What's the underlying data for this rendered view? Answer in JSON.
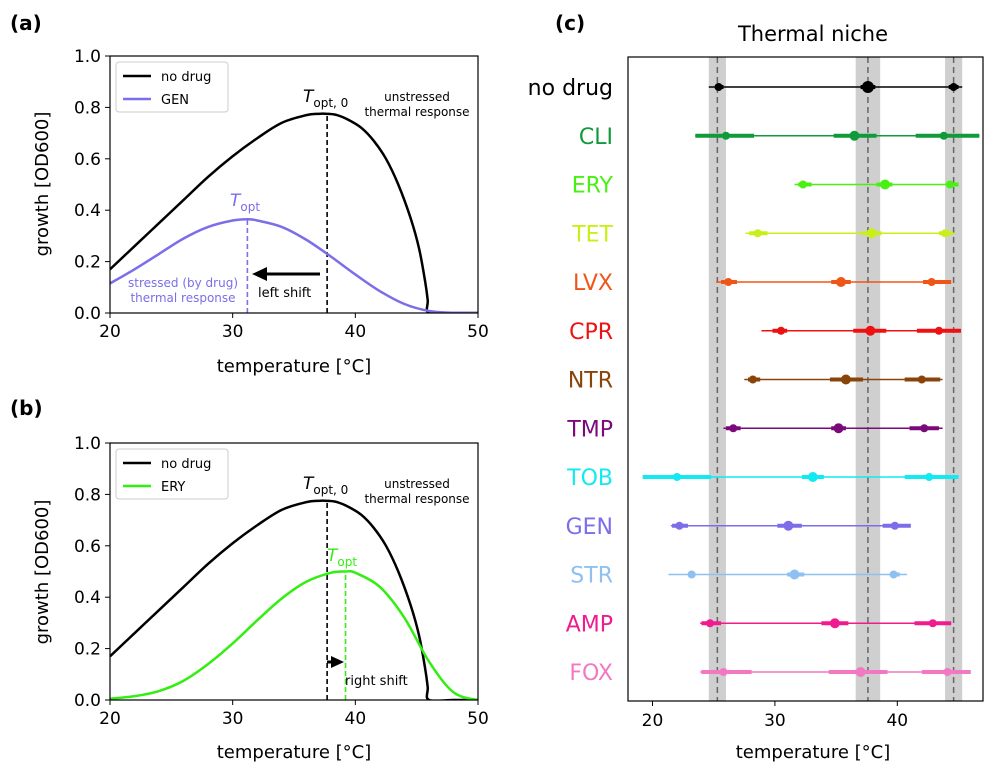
{
  "chart_data": [
    {
      "type": "line",
      "panel": "(a)",
      "xlabel": "temperature [°C]",
      "ylabel": "growth [OD600]",
      "xlim": [
        20,
        50
      ],
      "ylim": [
        0,
        1.0
      ],
      "xticks": [
        "20",
        "30",
        "40",
        "50"
      ],
      "yticks": [
        "0.0",
        "0.2",
        "0.4",
        "0.6",
        "0.8",
        "1.0"
      ],
      "legend_position": "top-left",
      "series": [
        {
          "name": "no drug",
          "color": "#000000",
          "x": [
            20,
            22,
            24,
            26,
            28,
            30,
            32,
            34,
            36,
            37,
            37.7,
            38.5,
            39.5,
            40.5,
            41.5,
            42.5,
            43.5,
            44.5,
            45.2,
            45.7,
            45.9,
            46,
            48,
            50
          ],
          "y": [
            0.17,
            0.26,
            0.35,
            0.44,
            0.53,
            0.61,
            0.68,
            0.74,
            0.77,
            0.775,
            0.775,
            0.77,
            0.75,
            0.72,
            0.67,
            0.6,
            0.5,
            0.37,
            0.25,
            0.12,
            0.05,
            0.0,
            0.0,
            0.0
          ]
        },
        {
          "name": "GEN",
          "color": "#7b6ee8",
          "x": [
            20,
            22,
            24,
            26,
            28,
            30,
            31.2,
            32,
            34,
            36,
            38,
            40,
            42,
            44,
            46,
            48,
            50
          ],
          "y": [
            0.115,
            0.17,
            0.23,
            0.29,
            0.335,
            0.36,
            0.365,
            0.36,
            0.335,
            0.285,
            0.22,
            0.15,
            0.085,
            0.035,
            0.008,
            0.001,
            0.0
          ]
        }
      ],
      "annotations": {
        "topt0": "T",
        "topt0_sub": "opt, 0",
        "topt0_x": 37.7,
        "unstressed_line1": "unstressed",
        "unstressed_line2": "thermal response",
        "topt": "T",
        "topt_sub": "opt",
        "topt_x": 31.2,
        "stressed_line1": "stressed (by drug)",
        "stressed_line2": "thermal response",
        "shift_label": "left shift"
      }
    },
    {
      "type": "line",
      "panel": "(b)",
      "xlabel": "temperature [°C]",
      "ylabel": "growth [OD600]",
      "xlim": [
        20,
        50
      ],
      "ylim": [
        0,
        1.0
      ],
      "xticks": [
        "20",
        "30",
        "40",
        "50"
      ],
      "yticks": [
        "0.0",
        "0.2",
        "0.4",
        "0.6",
        "0.8",
        "1.0"
      ],
      "legend_position": "top-left",
      "series": [
        {
          "name": "no drug",
          "color": "#000000",
          "x": [
            20,
            22,
            24,
            26,
            28,
            30,
            32,
            34,
            36,
            37,
            37.7,
            38.5,
            39.5,
            40.5,
            41.5,
            42.5,
            43.5,
            44.5,
            45.2,
            45.7,
            45.9,
            46,
            48,
            50
          ],
          "y": [
            0.17,
            0.26,
            0.35,
            0.44,
            0.53,
            0.61,
            0.68,
            0.74,
            0.77,
            0.775,
            0.775,
            0.77,
            0.75,
            0.72,
            0.67,
            0.6,
            0.5,
            0.37,
            0.25,
            0.12,
            0.05,
            0.0,
            0.0,
            0.0
          ]
        },
        {
          "name": "ERY",
          "color": "#33ee11",
          "x": [
            20,
            22,
            24,
            26,
            28,
            30,
            32,
            34,
            36,
            38,
            39.2,
            40,
            42,
            44,
            46,
            48,
            50
          ],
          "y": [
            0.005,
            0.015,
            0.035,
            0.075,
            0.14,
            0.22,
            0.31,
            0.395,
            0.46,
            0.495,
            0.5,
            0.495,
            0.44,
            0.32,
            0.15,
            0.03,
            0.0
          ]
        }
      ],
      "annotations": {
        "topt0": "T",
        "topt0_sub": "opt, 0",
        "topt0_x": 37.7,
        "unstressed_line1": "unstressed",
        "unstressed_line2": "thermal response",
        "topt": "T",
        "topt_sub": "opt",
        "topt_x": 39.2,
        "shift_label": "right shift"
      }
    },
    {
      "type": "scatter",
      "panel": "(c)",
      "title": "Thermal niche",
      "xlabel": "temperature [°C]",
      "xlim": [
        18,
        47
      ],
      "xticks": [
        20,
        30,
        40
      ],
      "reference_lines": [
        25.3,
        37.6,
        44.6
      ],
      "reference_bands": [
        [
          24.6,
          26.0
        ],
        [
          36.6,
          38.6
        ],
        [
          43.9,
          45.3
        ]
      ],
      "series": [
        {
          "name": "no drug",
          "color": "#000000",
          "min": 24.6,
          "max": 45.3,
          "points": [
            {
              "x": 25.4,
              "thick": [
                25.1,
                25.8
              ],
              "size": 4
            },
            {
              "x": 37.6,
              "thick": [
                37.0,
                38.2
              ],
              "size": 6
            },
            {
              "x": 44.6,
              "thick": [
                44.2,
                45.0
              ],
              "size": 4
            }
          ]
        },
        {
          "name": "CLI",
          "color": "#109a39",
          "min": 23.5,
          "max": 46.7,
          "points": [
            {
              "x": 26.0,
              "thick": [
                23.5,
                28.3
              ],
              "size": 4
            },
            {
              "x": 36.5,
              "thick": [
                34.8,
                38.3
              ],
              "size": 5
            },
            {
              "x": 43.8,
              "thick": [
                41.5,
                46.7
              ],
              "size": 4
            }
          ]
        },
        {
          "name": "ERY",
          "color": "#4af012",
          "min": 31.6,
          "max": 45.0,
          "points": [
            {
              "x": 32.3,
              "thick": [
                31.9,
                33.0
              ],
              "size": 4
            },
            {
              "x": 39.0,
              "thick": [
                38.3,
                39.6
              ],
              "size": 5
            },
            {
              "x": 44.3,
              "thick": [
                44.0,
                45.0
              ],
              "size": 4
            }
          ]
        },
        {
          "name": "TET",
          "color": "#c8f018",
          "min": 27.6,
          "max": 44.7,
          "points": [
            {
              "x": 28.6,
              "thick": [
                27.9,
                29.4
              ],
              "size": 4
            },
            {
              "x": 37.9,
              "thick": [
                37.1,
                38.7
              ],
              "size": 5
            },
            {
              "x": 43.9,
              "thick": [
                43.4,
                44.5
              ],
              "size": 4
            }
          ]
        },
        {
          "name": "LVX",
          "color": "#f05518",
          "min": 25.2,
          "max": 44.4,
          "points": [
            {
              "x": 26.2,
              "thick": [
                25.6,
                26.9
              ],
              "size": 4
            },
            {
              "x": 35.4,
              "thick": [
                34.6,
                36.2
              ],
              "size": 5
            },
            {
              "x": 42.8,
              "thick": [
                42.1,
                44.4
              ],
              "size": 4
            }
          ]
        },
        {
          "name": "CPR",
          "color": "#ee1111",
          "min": 28.9,
          "max": 45.2,
          "points": [
            {
              "x": 30.5,
              "thick": [
                29.8,
                31.0
              ],
              "size": 4
            },
            {
              "x": 37.8,
              "thick": [
                36.4,
                39.1
              ],
              "size": 5
            },
            {
              "x": 43.4,
              "thick": [
                41.6,
                45.2
              ],
              "size": 4
            }
          ]
        },
        {
          "name": "NTR",
          "color": "#8a4409",
          "min": 27.5,
          "max": 43.7,
          "points": [
            {
              "x": 28.2,
              "thick": [
                27.8,
                28.8
              ],
              "size": 4
            },
            {
              "x": 35.8,
              "thick": [
                34.5,
                37.2
              ],
              "size": 5
            },
            {
              "x": 42.0,
              "thick": [
                40.6,
                43.5
              ],
              "size": 4
            }
          ]
        },
        {
          "name": "TMP",
          "color": "#7a0a7c",
          "min": 25.8,
          "max": 43.7,
          "points": [
            {
              "x": 26.6,
              "thick": [
                26.0,
                27.2
              ],
              "size": 4
            },
            {
              "x": 35.2,
              "thick": [
                34.6,
                35.8
              ],
              "size": 5
            },
            {
              "x": 42.2,
              "thick": [
                41.0,
                43.4
              ],
              "size": 4
            }
          ]
        },
        {
          "name": "TOB",
          "color": "#11eaf0",
          "min": 19.2,
          "max": 45.0,
          "points": [
            {
              "x": 22.0,
              "thick": [
                19.2,
                24.8
              ],
              "size": 4
            },
            {
              "x": 33.1,
              "thick": [
                32.2,
                34.0
              ],
              "size": 5
            },
            {
              "x": 42.6,
              "thick": [
                40.6,
                45.0
              ],
              "size": 4
            }
          ]
        },
        {
          "name": "GEN",
          "color": "#7b6ee8",
          "min": 21.5,
          "max": 41.1,
          "points": [
            {
              "x": 22.2,
              "thick": [
                21.6,
                22.9
              ],
              "size": 4
            },
            {
              "x": 31.1,
              "thick": [
                30.2,
                32.2
              ],
              "size": 5
            },
            {
              "x": 39.8,
              "thick": [
                38.8,
                41.1
              ],
              "size": 4
            }
          ]
        },
        {
          "name": "STR",
          "color": "#8ec0f2",
          "min": 21.3,
          "max": 40.8,
          "points": [
            {
              "x": 23.2,
              "thick": [
                22.9,
                23.5
              ],
              "size": 4
            },
            {
              "x": 31.6,
              "thick": [
                31.0,
                32.4
              ],
              "size": 5
            },
            {
              "x": 39.7,
              "thick": [
                39.4,
                40.2
              ],
              "size": 4
            }
          ]
        },
        {
          "name": "AMP",
          "color": "#f01b8e",
          "min": 23.9,
          "max": 44.4,
          "points": [
            {
              "x": 24.7,
              "thick": [
                24.0,
                25.6
              ],
              "size": 4
            },
            {
              "x": 34.9,
              "thick": [
                33.8,
                36.0
              ],
              "size": 5
            },
            {
              "x": 42.9,
              "thick": [
                41.4,
                44.4
              ],
              "size": 4
            }
          ]
        },
        {
          "name": "FOX",
          "color": "#f278c4",
          "min": 23.9,
          "max": 46.0,
          "points": [
            {
              "x": 25.8,
              "thick": [
                24.0,
                28.1
              ],
              "size": 4
            },
            {
              "x": 37.0,
              "thick": [
                34.4,
                39.2
              ],
              "size": 5
            },
            {
              "x": 44.1,
              "thick": [
                42.0,
                46.0
              ],
              "size": 4
            }
          ]
        }
      ]
    }
  ]
}
